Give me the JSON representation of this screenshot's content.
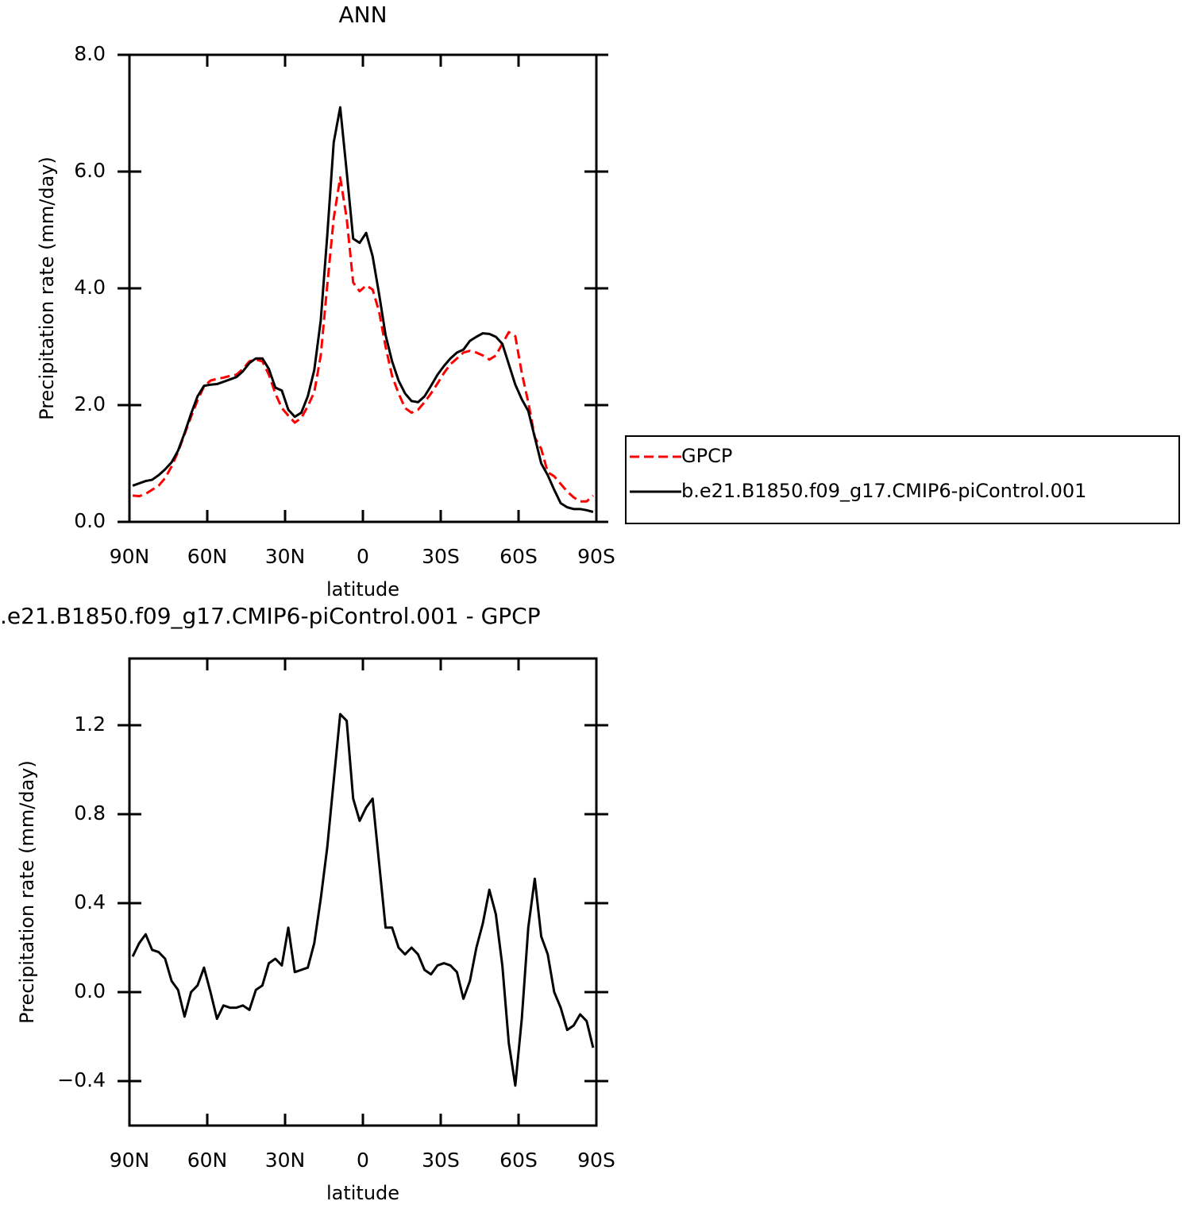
{
  "chart_data": [
    {
      "type": "line",
      "title": "ANN",
      "xlabel": "latitude",
      "ylabel": "Precipitation rate (mm/day)",
      "x": [
        88.75,
        86.25,
        83.75,
        81.25,
        78.75,
        76.25,
        73.75,
        71.25,
        68.75,
        66.25,
        63.75,
        61.25,
        58.75,
        56.25,
        53.75,
        51.25,
        48.75,
        46.25,
        43.75,
        41.25,
        38.75,
        36.25,
        33.75,
        31.25,
        28.75,
        26.25,
        23.75,
        21.25,
        18.75,
        16.25,
        13.75,
        11.25,
        8.75,
        6.25,
        3.75,
        1.25,
        -1.25,
        -3.75,
        -6.25,
        -8.75,
        -11.25,
        -13.75,
        -16.25,
        -18.75,
        -21.25,
        -23.75,
        -26.25,
        -28.75,
        -31.25,
        -33.75,
        -36.25,
        -38.75,
        -41.25,
        -43.75,
        -46.25,
        -48.75,
        -51.25,
        -53.75,
        -56.25,
        -58.75,
        -61.25,
        -63.75,
        -66.25,
        -68.75,
        -71.25,
        -73.75,
        -76.25,
        -78.75,
        -81.25,
        -83.75,
        -86.25,
        -88.75
      ],
      "series": [
        {
          "name": "GPCP",
          "color": "#ff0000",
          "line_style": "dashed",
          "values": [
            0.45,
            0.44,
            0.48,
            0.55,
            0.62,
            0.75,
            0.95,
            1.2,
            1.5,
            1.8,
            2.08,
            2.32,
            2.42,
            2.45,
            2.47,
            2.5,
            2.52,
            2.62,
            2.75,
            2.78,
            2.75,
            2.52,
            2.2,
            1.95,
            1.82,
            1.7,
            1.78,
            1.98,
            2.22,
            2.85,
            4.05,
            5.2,
            5.9,
            5.2,
            4.1,
            3.95,
            4.05,
            3.98,
            3.6,
            3.0,
            2.5,
            2.2,
            1.95,
            1.87,
            1.92,
            2.05,
            2.2,
            2.37,
            2.55,
            2.7,
            2.8,
            2.9,
            2.93,
            2.9,
            2.85,
            2.78,
            2.85,
            3.05,
            3.25,
            3.18,
            2.55,
            2.05,
            1.45,
            1.25,
            0.85,
            0.78,
            0.65,
            0.52,
            0.42,
            0.35,
            0.35,
            0.45
          ]
        },
        {
          "name": "b.e21.B1850.f09_g17.CMIP6-piControl.001",
          "color": "#000000",
          "line_style": "solid",
          "values": [
            0.62,
            0.66,
            0.7,
            0.72,
            0.8,
            0.9,
            1.02,
            1.22,
            1.52,
            1.85,
            2.15,
            2.33,
            2.35,
            2.36,
            2.4,
            2.44,
            2.48,
            2.58,
            2.72,
            2.8,
            2.8,
            2.62,
            2.3,
            2.25,
            1.92,
            1.8,
            1.87,
            2.15,
            2.6,
            3.45,
            4.9,
            6.5,
            7.1,
            6.0,
            4.85,
            4.78,
            4.95,
            4.55,
            3.9,
            3.2,
            2.75,
            2.42,
            2.2,
            2.07,
            2.05,
            2.15,
            2.33,
            2.52,
            2.67,
            2.8,
            2.9,
            2.95,
            3.1,
            3.17,
            3.23,
            3.22,
            3.17,
            3.05,
            2.7,
            2.35,
            2.1,
            1.9,
            1.45,
            1.0,
            0.8,
            0.55,
            0.32,
            0.25,
            0.22,
            0.22,
            0.2,
            0.17
          ]
        }
      ],
      "xlim": [
        90,
        -90
      ],
      "xticks": [
        {
          "value": 90,
          "label": "90N"
        },
        {
          "value": 60,
          "label": "60N"
        },
        {
          "value": 30,
          "label": "30N"
        },
        0,
        {
          "value": -30,
          "label": "30S"
        },
        {
          "value": -60,
          "label": "60S"
        },
        {
          "value": -90,
          "label": "90S"
        }
      ],
      "ylim": [
        0,
        8
      ],
      "yticks": [
        {
          "value": 0,
          "label": "0.0"
        },
        {
          "value": 2,
          "label": "2.0"
        },
        {
          "value": 4,
          "label": "4.0"
        },
        {
          "value": 6,
          "label": "6.0"
        },
        {
          "value": 8,
          "label": "8.0"
        }
      ],
      "legend": "right"
    },
    {
      "type": "line",
      "title": ".e21.B1850.f09_g17.CMIP6-piControl.001  -  GPCP",
      "xlabel": "latitude",
      "ylabel": "Precipitation rate (mm/day)",
      "x": [
        88.75,
        86.25,
        83.75,
        81.25,
        78.75,
        76.25,
        73.75,
        71.25,
        68.75,
        66.25,
        63.75,
        61.25,
        58.75,
        56.25,
        53.75,
        51.25,
        48.75,
        46.25,
        43.75,
        41.25,
        38.75,
        36.25,
        33.75,
        31.25,
        28.75,
        26.25,
        23.75,
        21.25,
        18.75,
        16.25,
        13.75,
        11.25,
        8.75,
        6.25,
        3.75,
        1.25,
        -1.25,
        -3.75,
        -6.25,
        -8.75,
        -11.25,
        -13.75,
        -16.25,
        -18.75,
        -21.25,
        -23.75,
        -26.25,
        -28.75,
        -31.25,
        -33.75,
        -36.25,
        -38.75,
        -41.25,
        -43.75,
        -46.25,
        -48.75,
        -51.25,
        -53.75,
        -56.25,
        -58.75,
        -61.25,
        -63.75,
        -66.25,
        -68.75,
        -71.25,
        -73.75,
        -76.25,
        -78.75,
        -81.25,
        -83.75,
        -86.25,
        -88.75
      ],
      "color": "#000000",
      "values": [
        0.16,
        0.22,
        0.26,
        0.19,
        0.18,
        0.15,
        0.05,
        0.01,
        -0.11,
        0.0,
        0.03,
        0.11,
        0.0,
        -0.12,
        -0.06,
        -0.07,
        -0.07,
        -0.06,
        -0.08,
        0.01,
        0.03,
        0.13,
        0.15,
        0.12,
        0.29,
        0.09,
        0.1,
        0.11,
        0.22,
        0.42,
        0.65,
        0.95,
        1.25,
        1.22,
        0.87,
        0.77,
        0.83,
        0.87,
        0.58,
        0.29,
        0.29,
        0.2,
        0.17,
        0.2,
        0.17,
        0.1,
        0.08,
        0.12,
        0.13,
        0.12,
        0.09,
        -0.03,
        0.05,
        0.2,
        0.31,
        0.46,
        0.35,
        0.12,
        -0.23,
        -0.42,
        -0.12,
        0.29,
        0.51,
        0.25,
        0.17,
        0.0,
        -0.07,
        -0.17,
        -0.15,
        -0.1,
        -0.13,
        -0.25
      ],
      "xlim": [
        90,
        -90
      ],
      "xticks": [
        {
          "value": 90,
          "label": "90N"
        },
        {
          "value": 60,
          "label": "60N"
        },
        {
          "value": 30,
          "label": "30N"
        },
        0,
        {
          "value": -30,
          "label": "30S"
        },
        {
          "value": -60,
          "label": "60S"
        },
        {
          "value": -90,
          "label": "90S"
        }
      ],
      "ylim": [
        -0.6,
        1.5
      ],
      "yticks": [
        {
          "value": -0.4,
          "label": "−0.4"
        },
        {
          "value": 0,
          "label": "0.0"
        },
        0.4,
        0.8,
        1.2
      ]
    }
  ]
}
